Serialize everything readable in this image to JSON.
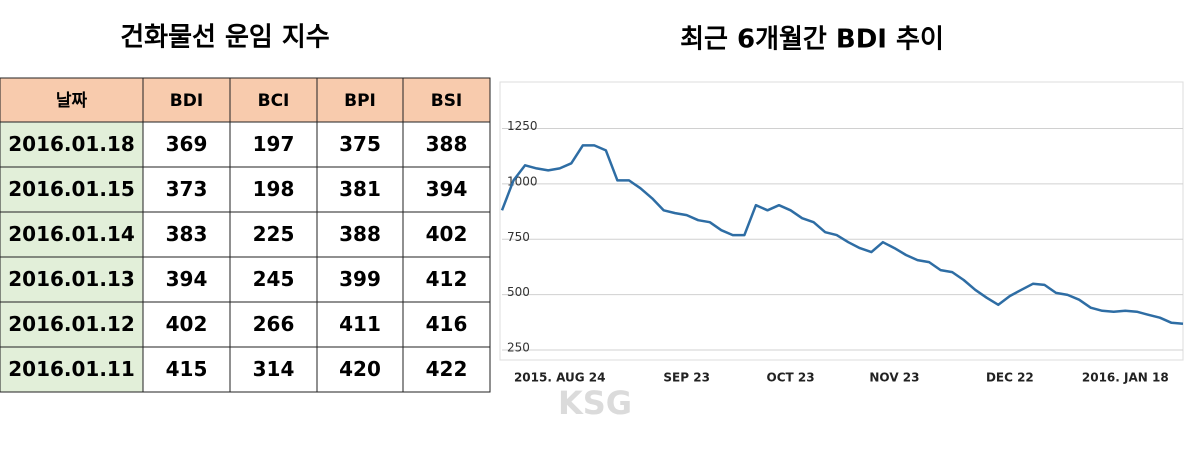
{
  "table": {
    "title": "건화물선 운임 지수",
    "header": [
      "날짜",
      "BDI",
      "BCI",
      "BPI",
      "BSI"
    ],
    "rows": [
      [
        "2016.01.18",
        "369",
        "197",
        "375",
        "388"
      ],
      [
        "2016.01.15",
        "373",
        "198",
        "381",
        "394"
      ],
      [
        "2016.01.14",
        "383",
        "225",
        "388",
        "402"
      ],
      [
        "2016.01.13",
        "394",
        "245",
        "399",
        "412"
      ],
      [
        "2016.01.12",
        "402",
        "266",
        "411",
        "416"
      ],
      [
        "2016.01.11",
        "415",
        "314",
        "420",
        "422"
      ]
    ]
  },
  "chart_data": {
    "type": "line",
    "title": "최근 6개월간 BDI 추이",
    "categories": [
      null,
      null,
      null,
      null,
      null,
      "2015. AUG 24",
      null,
      null,
      null,
      null,
      null,
      null,
      null,
      null,
      null,
      null,
      "SEP 23",
      null,
      null,
      null,
      null,
      null,
      null,
      null,
      null,
      "OCT 23",
      null,
      null,
      null,
      null,
      null,
      null,
      null,
      null,
      "NOV 23",
      null,
      null,
      null,
      null,
      null,
      null,
      null,
      null,
      null,
      "DEC 22",
      null,
      null,
      null,
      null,
      null,
      null,
      null,
      null,
      null,
      "2016. JAN 18",
      null,
      null,
      null,
      null,
      null
    ],
    "series": [
      {
        "name": "BDI",
        "color": "#2e6da4",
        "values": [
          881,
          1016,
          1084,
          1070,
          1061,
          1070,
          1093,
          1174,
          1174,
          1151,
          1016,
          1016,
          980,
          935,
          881,
          868,
          859,
          836,
          827,
          791,
          769,
          769,
          904,
          881,
          904,
          881,
          845,
          827,
          782,
          769,
          737,
          710,
          692,
          737,
          710,
          679,
          656,
          647,
          611,
          602,
          566,
          522,
          486,
          454,
          494,
          522,
          549,
          544,
          508,
          499,
          477,
          441,
          427,
          423,
          427,
          423,
          409,
          396,
          373,
          369
        ]
      }
    ],
    "ylim": [
      205,
      1460
    ],
    "yticks": [
      250,
      500,
      750,
      1000,
      1250
    ],
    "grid": true
  },
  "watermark": "KSG"
}
